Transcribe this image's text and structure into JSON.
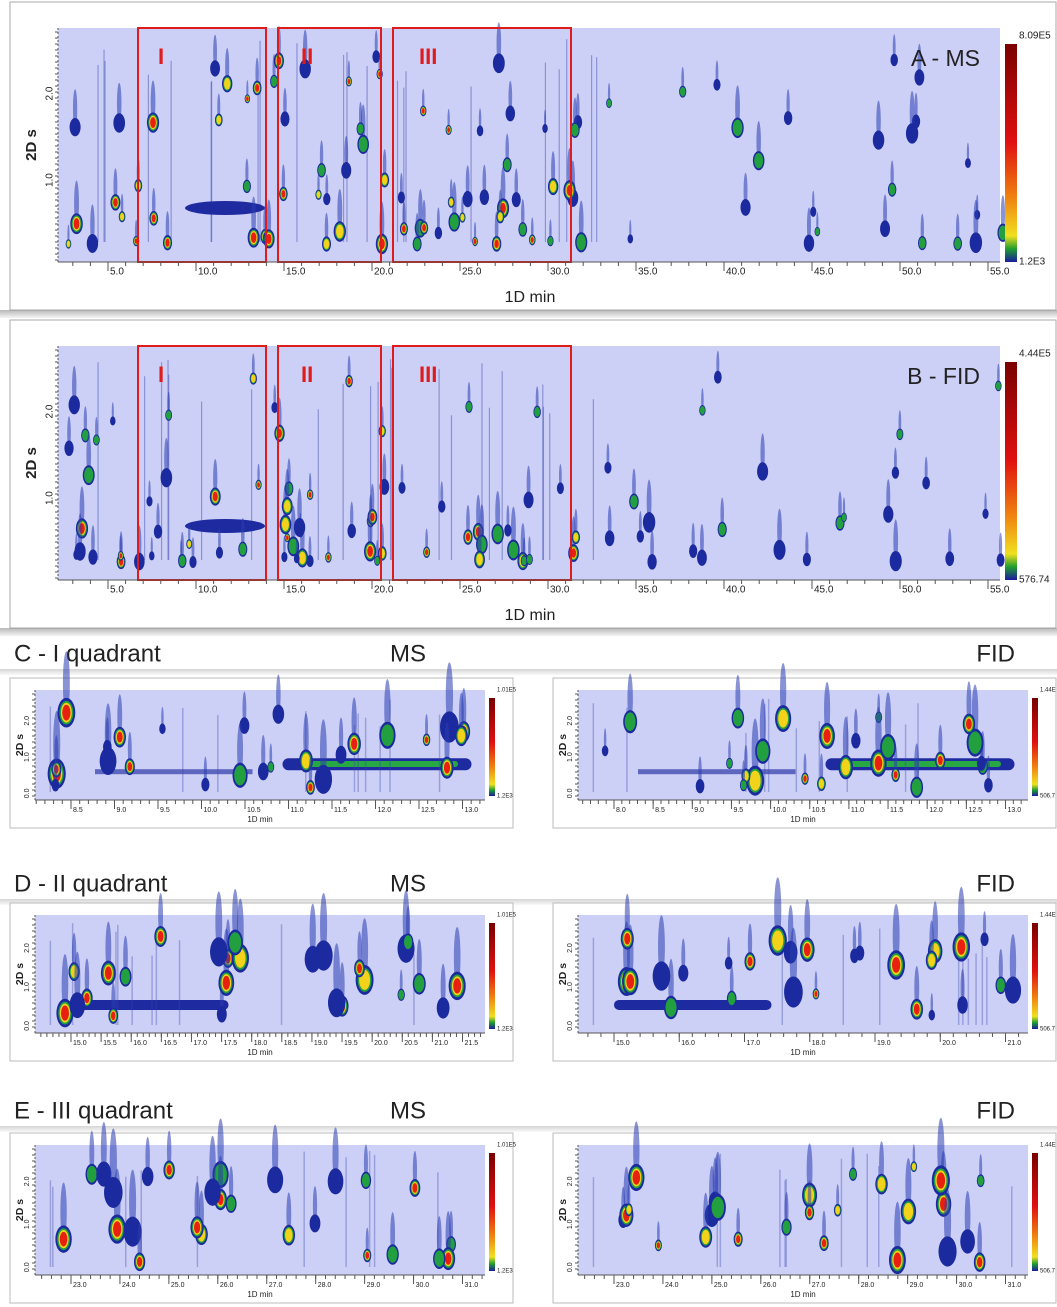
{
  "panels": [
    {
      "label": "A - MS",
      "y_label": "2D s",
      "x_label": "1D min",
      "y_ticks": [
        "2.0",
        "1.0"
      ],
      "x_ticks": [
        "5.0",
        "10.0",
        "15.0",
        "20.0",
        "25.0",
        "30.0",
        "35.0",
        "40.0",
        "45.0",
        "50.0",
        "55.0"
      ],
      "colorbar": [
        "8.09E5",
        "1.2E3"
      ],
      "regions": [
        "I",
        "II",
        "III"
      ]
    },
    {
      "label": "B - FID",
      "y_label": "2D s",
      "x_label": "1D min",
      "y_ticks": [
        "2.0",
        "1.0"
      ],
      "x_ticks": [
        "5.0",
        "10.0",
        "15.0",
        "20.0",
        "25.0",
        "30.0",
        "35.0",
        "40.0",
        "45.0",
        "50.0",
        "55.0"
      ],
      "colorbar": [
        "4.44E5",
        "576.74"
      ],
      "regions": [
        "I",
        "II",
        "III"
      ]
    }
  ],
  "quadrants": [
    {
      "title": "C - I quadrant",
      "left_label": "MS",
      "right_label": "FID",
      "plots": [
        {
          "y_label": "2D s",
          "x_label": "1D min",
          "y_ticks": [
            "2.0",
            "1.0",
            "0.0"
          ],
          "x_ticks": [
            "8.5",
            "9.0",
            "9.5",
            "10.0",
            "10.5",
            "11.0",
            "11.5",
            "12.0",
            "12.5",
            "13.0"
          ],
          "colorbar": [
            "1.01E5",
            "1.2E3"
          ]
        },
        {
          "y_label": "2D s",
          "x_label": "1D min",
          "y_ticks": [
            "2.0",
            "1.0",
            "0.0"
          ],
          "x_ticks": [
            "8.0",
            "8.5",
            "9.0",
            "9.5",
            "10.0",
            "10.5",
            "11.0",
            "11.5",
            "12.0",
            "12.5",
            "13.0"
          ],
          "colorbar": [
            "1.44E",
            "506.7"
          ]
        }
      ]
    },
    {
      "title": "D - II quadrant",
      "left_label": "MS",
      "right_label": "FID",
      "plots": [
        {
          "y_label": "2D s",
          "x_label": "1D min",
          "y_ticks": [
            "2.0",
            "1.0",
            "0.0"
          ],
          "x_ticks": [
            "15.0",
            "15.5",
            "16.0",
            "16.5",
            "17.0",
            "17.5",
            "18.0",
            "18.5",
            "19.0",
            "19.5",
            "20.0",
            "20.5",
            "21.0",
            "21.5"
          ],
          "colorbar": [
            "1.01E5",
            "1.2E3"
          ]
        },
        {
          "y_label": "2D s",
          "x_label": "1D min",
          "y_ticks": [
            "2.0",
            "1.0",
            "0.0"
          ],
          "x_ticks": [
            "15.0",
            "16.0",
            "17.0",
            "18.0",
            "19.0",
            "20.0",
            "21.0"
          ],
          "colorbar": [
            "1.44E",
            "506.7"
          ]
        }
      ]
    },
    {
      "title": "E - III quadrant",
      "left_label": "MS",
      "right_label": "FID",
      "plots": [
        {
          "y_label": "2D s",
          "x_label": "1D min",
          "y_ticks": [
            "2.0",
            "1.0",
            "0.0"
          ],
          "x_ticks": [
            "23.0",
            "24.0",
            "25.0",
            "26.0",
            "27.0",
            "28.0",
            "29.0",
            "30.0",
            "31.0"
          ],
          "colorbar": [
            "1.01E5",
            "1.2E3"
          ]
        },
        {
          "y_label": "2D s",
          "x_label": "1D min",
          "y_ticks": [
            "2.0",
            "1.0",
            "0.0"
          ],
          "x_ticks": [
            "23.0",
            "24.0",
            "25.0",
            "26.0",
            "27.0",
            "28.0",
            "29.0",
            "30.0",
            "31.0"
          ],
          "colorbar": [
            "1.44E",
            "506.7"
          ]
        }
      ]
    }
  ]
}
